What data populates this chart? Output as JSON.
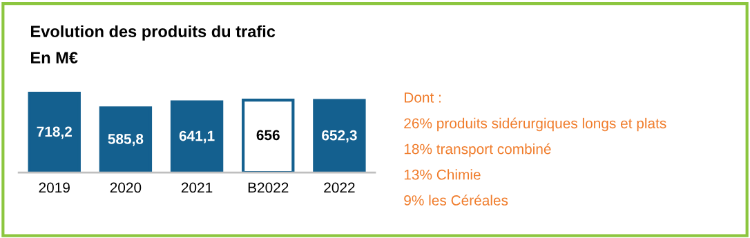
{
  "chart_data": {
    "type": "bar",
    "title": "Evolution des produits du trafic",
    "subtitle": "En M€",
    "categories": [
      "2019",
      "2020",
      "2021",
      "B2022",
      "2022"
    ],
    "series": [
      {
        "color": "#14608f",
        "colors": [
          "#14608f",
          "#14608f",
          "#14608f",
          "#ffffff",
          "#14608f"
        ],
        "values": [
          718.2,
          585.8,
          641.1,
          656,
          652.3
        ],
        "value_labels": [
          "718,2",
          "585,8",
          "641,1",
          "656",
          "652,3"
        ]
      }
    ],
    "grid": false,
    "legend": false,
    "annotations": [
      "Dont :",
      "26% produits sidérurgiques longs et plats",
      "18% transport combiné",
      "13% Chimie",
      "9% les Céréales"
    ]
  }
}
